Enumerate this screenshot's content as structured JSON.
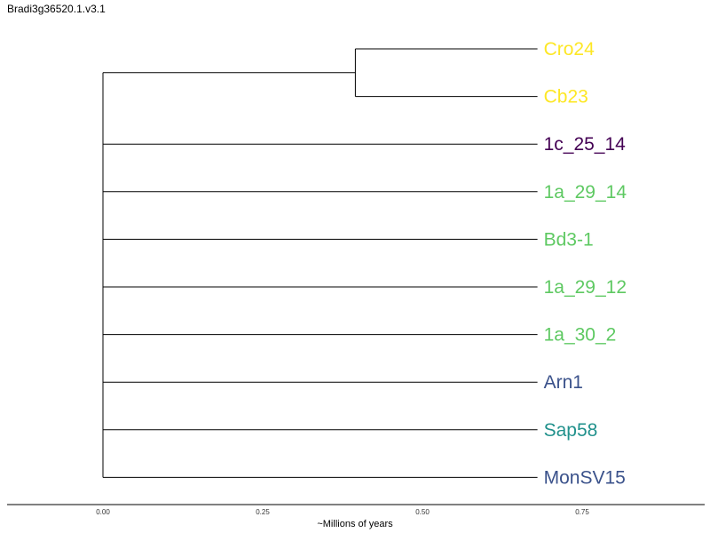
{
  "title": "Bradi3g36520.1.v3.1",
  "chart_data": {
    "type": "dendrogram",
    "xlabel": "~Millions of years",
    "xlim": [
      -0.15,
      0.94
    ],
    "xticks": [
      0.0,
      0.25,
      0.5,
      0.75
    ],
    "xtick_labels": [
      "0.00",
      "0.25",
      "0.50",
      "0.75"
    ],
    "tip_x": 0.68,
    "root_x": 0.0,
    "clades": [
      {
        "node_x": 0.395,
        "tips": [
          {
            "label": "Cro24",
            "color": "#fde725"
          },
          {
            "label": "Cb23",
            "color": "#fde725"
          }
        ]
      }
    ],
    "leaves": [
      {
        "label": "1c_25_14",
        "color": "#440154"
      },
      {
        "label": "1a_29_14",
        "color": "#5ec962"
      },
      {
        "label": "Bd3-1",
        "color": "#5ec962"
      },
      {
        "label": "1a_29_12",
        "color": "#5ec962"
      },
      {
        "label": "1a_30_2",
        "color": "#5ec962"
      },
      {
        "label": "Arn1",
        "color": "#3b528b"
      },
      {
        "label": "Sap58",
        "color": "#21918c"
      },
      {
        "label": "MonSV15",
        "color": "#3b528b"
      }
    ]
  }
}
